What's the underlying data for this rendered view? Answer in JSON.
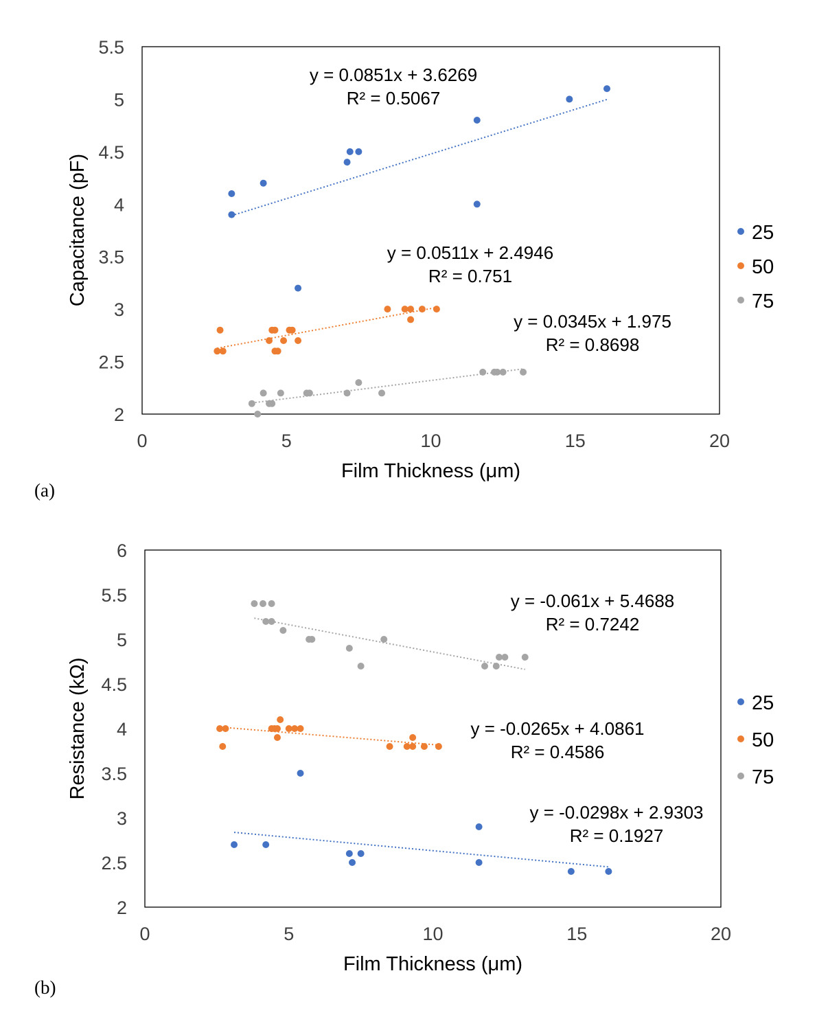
{
  "chart_data": [
    {
      "type": "scatter",
      "panel_label": "(a)",
      "xlabel": "Film Thickness (μm)",
      "ylabel": "Capacitance  (pF)",
      "xlim": [
        0,
        20
      ],
      "ylim": [
        2,
        5.5
      ],
      "xticks": [
        "0",
        "5",
        "10",
        "15",
        "20"
      ],
      "yticks": [
        "2",
        "2.5",
        "3",
        "3.5",
        "4",
        "4.5",
        "5",
        "5.5"
      ],
      "legend_position": "right",
      "grid": false,
      "series": [
        {
          "name": "25",
          "color": "#4472C4",
          "points": [
            [
              3.1,
              4.1
            ],
            [
              3.1,
              3.9
            ],
            [
              4.2,
              4.2
            ],
            [
              7.1,
              4.4
            ],
            [
              7.2,
              4.5
            ],
            [
              7.5,
              4.5
            ],
            [
              5.4,
              3.2
            ],
            [
              11.6,
              4.8
            ],
            [
              11.6,
              4.0
            ],
            [
              14.8,
              5.0
            ],
            [
              16.1,
              5.1
            ]
          ],
          "trendline": {
            "x": [
              3.1,
              16.1
            ],
            "slope": 0.0851,
            "intercept": 3.6269
          },
          "equation": "y = 0.0851x + 3.6269",
          "r2": "R² = 0.5067"
        },
        {
          "name": "50",
          "color": "#ED7D31",
          "points": [
            [
              2.6,
              2.6
            ],
            [
              2.7,
              2.8
            ],
            [
              2.8,
              2.6
            ],
            [
              4.4,
              2.7
            ],
            [
              4.5,
              2.8
            ],
            [
              4.6,
              2.8
            ],
            [
              4.6,
              2.6
            ],
            [
              4.7,
              2.6
            ],
            [
              4.9,
              2.7
            ],
            [
              5.1,
              2.8
            ],
            [
              5.2,
              2.8
            ],
            [
              5.4,
              2.7
            ],
            [
              8.5,
              3.0
            ],
            [
              9.1,
              3.0
            ],
            [
              9.3,
              3.0
            ],
            [
              9.3,
              2.9
            ],
            [
              9.7,
              3.0
            ],
            [
              10.2,
              3.0
            ]
          ],
          "trendline": {
            "x": [
              2.6,
              10.2
            ],
            "slope": 0.0511,
            "intercept": 2.4946
          },
          "equation": "y = 0.0511x + 2.4946",
          "r2": "R² = 0.751"
        },
        {
          "name": "75",
          "color": "#A5A5A5",
          "points": [
            [
              3.8,
              2.1
            ],
            [
              4.0,
              2.0
            ],
            [
              4.2,
              2.2
            ],
            [
              4.4,
              2.1
            ],
            [
              4.5,
              2.1
            ],
            [
              4.8,
              2.2
            ],
            [
              5.7,
              2.2
            ],
            [
              5.8,
              2.2
            ],
            [
              7.1,
              2.2
            ],
            [
              7.5,
              2.3
            ],
            [
              8.3,
              2.2
            ],
            [
              11.8,
              2.4
            ],
            [
              12.2,
              2.4
            ],
            [
              12.3,
              2.4
            ],
            [
              12.5,
              2.4
            ],
            [
              13.2,
              2.4
            ]
          ],
          "trendline": {
            "x": [
              3.8,
              13.2
            ],
            "slope": 0.0345,
            "intercept": 1.975
          },
          "equation": "y = 0.0345x + 1.975",
          "r2": "R² = 0.8698"
        }
      ]
    },
    {
      "type": "scatter",
      "panel_label": "(b)",
      "xlabel": "Film Thickness (μm)",
      "ylabel": "Resistance (kΩ)",
      "xlim": [
        0,
        20
      ],
      "ylim": [
        2,
        6
      ],
      "xticks": [
        "0",
        "5",
        "10",
        "15",
        "20"
      ],
      "yticks": [
        "2",
        "2.5",
        "3",
        "3.5",
        "4",
        "4.5",
        "5",
        "5.5",
        "6"
      ],
      "legend_position": "right",
      "grid": false,
      "series": [
        {
          "name": "25",
          "color": "#4472C4",
          "points": [
            [
              3.1,
              2.7
            ],
            [
              4.2,
              2.7
            ],
            [
              7.1,
              2.6
            ],
            [
              7.2,
              2.5
            ],
            [
              7.5,
              2.6
            ],
            [
              5.4,
              3.5
            ],
            [
              11.6,
              2.9
            ],
            [
              11.6,
              2.5
            ],
            [
              14.8,
              2.4
            ],
            [
              16.1,
              2.4
            ]
          ],
          "trendline": {
            "x": [
              3.1,
              16.1
            ],
            "slope": -0.0298,
            "intercept": 2.9303
          },
          "equation": "y = -0.0298x + 2.9303",
          "r2": "R² = 0.1927"
        },
        {
          "name": "50",
          "color": "#ED7D31",
          "points": [
            [
              2.6,
              4.0
            ],
            [
              2.7,
              3.8
            ],
            [
              2.8,
              4.0
            ],
            [
              4.4,
              4.0
            ],
            [
              4.5,
              4.0
            ],
            [
              4.6,
              4.0
            ],
            [
              4.6,
              3.9
            ],
            [
              4.7,
              4.1
            ],
            [
              5.0,
              4.0
            ],
            [
              5.2,
              4.0
            ],
            [
              5.4,
              4.0
            ],
            [
              8.5,
              3.8
            ],
            [
              9.1,
              3.8
            ],
            [
              9.3,
              3.8
            ],
            [
              9.3,
              3.9
            ],
            [
              9.7,
              3.8
            ],
            [
              10.2,
              3.8
            ]
          ],
          "trendline": {
            "x": [
              2.6,
              10.2
            ],
            "slope": -0.0265,
            "intercept": 4.0861
          },
          "equation": "y = -0.0265x + 4.0861",
          "r2": "R² = 0.4586"
        },
        {
          "name": "75",
          "color": "#A5A5A5",
          "points": [
            [
              3.8,
              5.4
            ],
            [
              4.1,
              5.4
            ],
            [
              4.4,
              5.4
            ],
            [
              4.2,
              5.2
            ],
            [
              4.4,
              5.2
            ],
            [
              4.8,
              5.1
            ],
            [
              5.7,
              5.0
            ],
            [
              5.8,
              5.0
            ],
            [
              7.1,
              4.9
            ],
            [
              7.5,
              4.7
            ],
            [
              8.3,
              5.0
            ],
            [
              11.8,
              4.7
            ],
            [
              12.2,
              4.7
            ],
            [
              12.3,
              4.8
            ],
            [
              12.5,
              4.8
            ],
            [
              13.2,
              4.8
            ]
          ],
          "trendline": {
            "x": [
              3.8,
              13.2
            ],
            "slope": -0.061,
            "intercept": 5.4688
          },
          "equation": "y = -0.061x + 5.4688",
          "r2": "R² = 0.7242"
        }
      ]
    }
  ]
}
